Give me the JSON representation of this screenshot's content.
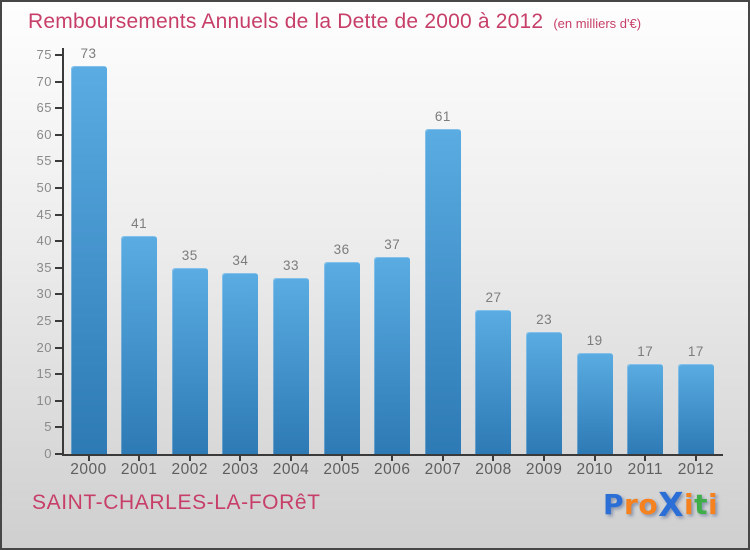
{
  "header": {
    "title": "Remboursements Annuels de la Dette de 2000 à 2012",
    "subtitle": "(en milliers d'€)"
  },
  "footer": {
    "commune": "SAINT-CHARLES-LA-FORêT"
  },
  "logo": {
    "name": "Proxiti",
    "letters": [
      {
        "char": "P",
        "color": "#2b6fd6"
      },
      {
        "char": "r",
        "color": "#f5821f"
      },
      {
        "char": "o",
        "color": "#f5821f"
      },
      {
        "char": "X",
        "color": "#2b6fd6"
      },
      {
        "char": "i",
        "color": "#f5821f"
      },
      {
        "char": "t",
        "color": "#3fae49"
      },
      {
        "char": "i",
        "color": "#f5821f"
      }
    ]
  },
  "theme": {
    "accent_pink": "#c73f68",
    "background_top": "#fefefe",
    "background_bottom": "#cfcfcf",
    "border_color": "#474747"
  },
  "chart_data": {
    "type": "bar",
    "title": "Remboursements Annuels de la Dette de 2000 à 2012",
    "subtitle_unit": "(en milliers d'€)",
    "categories": [
      "2000",
      "2001",
      "2002",
      "2003",
      "2004",
      "2005",
      "2006",
      "2007",
      "2008",
      "2009",
      "2010",
      "2011",
      "2012"
    ],
    "values": [
      73,
      41,
      35,
      34,
      33,
      36,
      37,
      61,
      27,
      23,
      19,
      17,
      17
    ],
    "ylim": [
      0,
      75
    ],
    "ytick_step": 5,
    "grid": false,
    "legend": "none",
    "bar_color_top": "#5bace3",
    "bar_color_bottom": "#2d7ab5",
    "axis_color": "#3a3a3a",
    "value_label_color": "#7c7c7c",
    "ytick_label_color": "#8a8a8a",
    "xtick_label_color": "#5e5e5e"
  }
}
